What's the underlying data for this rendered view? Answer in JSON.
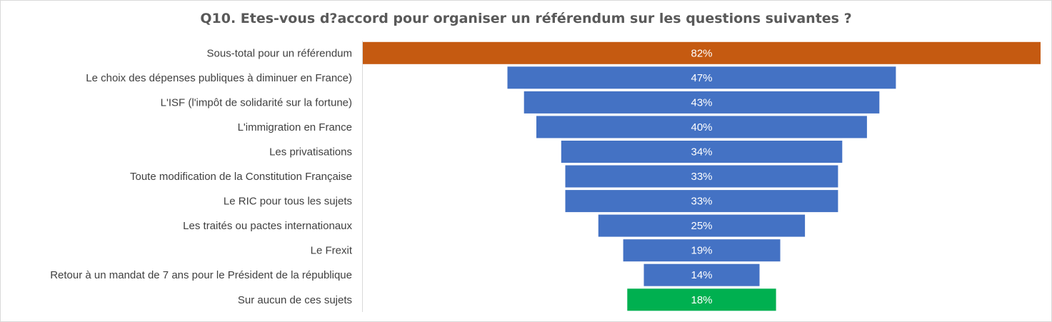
{
  "chart_data": {
    "type": "bar",
    "orientation": "horizontal",
    "layout": "funnel-centered",
    "title": "Q10. Etes-vous d?accord pour organiser un référendum sur les questions suivantes ?",
    "categories": [
      "Sous-total pour un référendum",
      "Le choix des dépenses publiques à diminuer en France)",
      "L'ISF (l'impôt de solidarité sur la fortune)",
      "L'immigration en France",
      "Les privatisations",
      "Toute modification de la Constitution Française",
      "Le RIC pour tous les sujets",
      "Les traités ou pactes internationaux",
      "Le Frexit",
      "Retour à un mandat de 7 ans pour le Président de la république",
      "Sur aucun de ces sujets"
    ],
    "values": [
      82,
      47,
      43,
      40,
      34,
      33,
      33,
      25,
      19,
      14,
      18
    ],
    "value_labels": [
      "82%",
      "47%",
      "43%",
      "40%",
      "34%",
      "33%",
      "33%",
      "25%",
      "19%",
      "14%",
      "18%"
    ],
    "bar_colors": [
      "#c55a11",
      "#4472c4",
      "#4472c4",
      "#4472c4",
      "#4472c4",
      "#4472c4",
      "#4472c4",
      "#4472c4",
      "#4472c4",
      "#4472c4",
      "#00b050"
    ],
    "xlim": [
      0,
      82
    ],
    "grid": false,
    "legend": "none"
  }
}
